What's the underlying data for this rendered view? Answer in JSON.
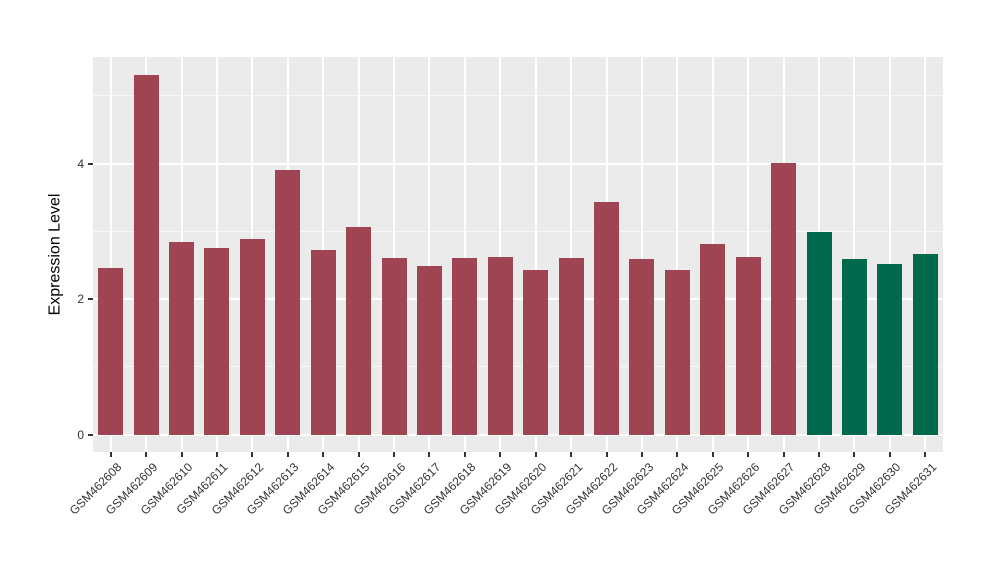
{
  "chart_data": {
    "type": "bar",
    "title": "",
    "xlabel": "",
    "ylabel": "Expression Level",
    "categories": [
      "GSM462608",
      "GSM462609",
      "GSM462610",
      "GSM462611",
      "GSM462612",
      "GSM462613",
      "GSM462614",
      "GSM462615",
      "GSM462616",
      "GSM462617",
      "GSM462618",
      "GSM462619",
      "GSM462620",
      "GSM462621",
      "GSM462622",
      "GSM462623",
      "GSM462624",
      "GSM462625",
      "GSM462626",
      "GSM462627",
      "GSM462628",
      "GSM462629",
      "GSM462630",
      "GSM462631"
    ],
    "values": [
      2.46,
      5.31,
      2.84,
      2.75,
      2.89,
      3.9,
      2.73,
      3.06,
      2.61,
      2.49,
      2.61,
      2.62,
      2.43,
      2.61,
      3.43,
      2.59,
      2.43,
      2.81,
      2.62,
      4.01,
      2.99,
      2.59,
      2.52,
      2.66
    ],
    "bar_colors": [
      "#9E4452",
      "#9E4452",
      "#9E4452",
      "#9E4452",
      "#9E4452",
      "#9E4452",
      "#9E4452",
      "#9E4452",
      "#9E4452",
      "#9E4452",
      "#9E4452",
      "#9E4452",
      "#9E4452",
      "#9E4452",
      "#9E4452",
      "#9E4452",
      "#9E4452",
      "#9E4452",
      "#9E4452",
      "#9E4452",
      "#00694C",
      "#00694C",
      "#00694C",
      "#00694C"
    ],
    "color_legend": {
      "group_1_color": "#9E4452",
      "group_1_samples": "GSM462608-GSM462627",
      "group_2_color": "#00694C",
      "group_2_samples": "GSM462628-GSM462631"
    },
    "yticks": [
      0,
      2,
      4
    ],
    "ytick_labels": [
      "0",
      "2",
      "4"
    ],
    "minor_gridlines": [
      1,
      3,
      5
    ],
    "ylim": [
      -0.26,
      5.57
    ],
    "grid": true,
    "legend_position": "none",
    "panel_background": "#EBEBEB",
    "major_grid_color": "#FFFFFF",
    "minor_grid_color": "rgba(255,255,255,0.65)",
    "axis_text_color": "#333333",
    "tick_mark_color": "#333333",
    "x_label_rotation_deg": 45
  }
}
